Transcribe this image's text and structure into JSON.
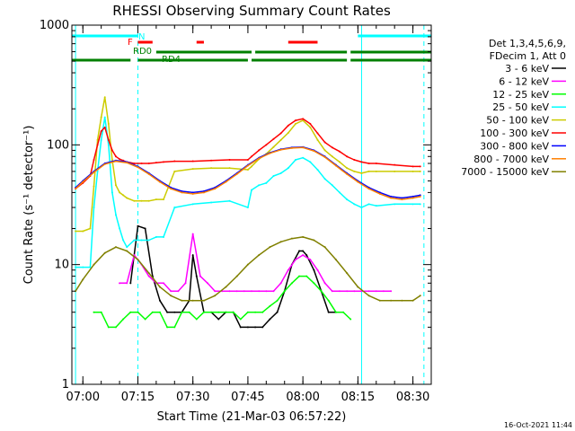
{
  "chart_data": {
    "type": "line",
    "title": "RHESSI Observing Summary Count Rates",
    "xlabel": "Start Time (21-Mar-03 06:57:22)",
    "ylabel": "Count Rate (s⁻¹ detector⁻¹)",
    "y_scale": "log",
    "ylim": [
      1,
      1000
    ],
    "xlim": [
      "06:57",
      "08:35"
    ],
    "x_ticks": [
      "07:00",
      "07:15",
      "07:30",
      "07:45",
      "08:00",
      "08:15",
      "08:30"
    ],
    "y_ticks": [
      "1",
      "10",
      "100",
      "1000"
    ],
    "legend_header": [
      "Det 1,3,4,5,6,9,",
      "FDecim 1, Att 0"
    ],
    "legend_position": "right",
    "series": [
      {
        "name": "3 - 6 keV",
        "color": "#000000",
        "x": [
          "07:13",
          "07:15",
          "07:17",
          "07:19",
          "07:21",
          "07:23",
          "07:25",
          "07:27",
          "07:29",
          "07:30",
          "07:31",
          "07:33",
          "07:35",
          "07:37",
          "07:39",
          "07:41",
          "07:43",
          "07:45",
          "07:47",
          "07:49",
          "07:51",
          "07:53",
          "07:55",
          "07:57",
          "07:59",
          "08:00",
          "08:01",
          "08:03",
          "08:05",
          "08:07",
          "08:09"
        ],
        "y": [
          7,
          21,
          20,
          8,
          5,
          4,
          4,
          4,
          5,
          12,
          8,
          4,
          4,
          3.5,
          4,
          4,
          3,
          3,
          3,
          3,
          3.5,
          4,
          6,
          10,
          13,
          13,
          12,
          9,
          6,
          4,
          4
        ]
      },
      {
        "name": "6 - 12 keV",
        "color": "#ff00ff",
        "x": [
          "07:10",
          "07:12",
          "07:14",
          "07:16",
          "07:18",
          "07:20",
          "07:22",
          "07:24",
          "07:26",
          "07:28",
          "07:30",
          "07:32",
          "07:34",
          "07:36",
          "07:38",
          "07:40",
          "07:42",
          "07:44",
          "07:46",
          "07:48",
          "07:50",
          "07:52",
          "07:54",
          "07:56",
          "07:58",
          "08:00",
          "08:02",
          "08:04",
          "08:06",
          "08:08",
          "08:10",
          "08:12",
          "08:14",
          "08:16",
          "08:18",
          "08:20",
          "08:22",
          "08:24"
        ],
        "y": [
          7,
          7,
          12,
          10,
          8,
          7,
          7,
          6,
          6,
          7,
          18,
          8,
          7,
          6,
          6,
          6,
          6,
          6,
          6,
          6,
          6,
          6,
          7,
          9,
          11,
          12,
          11,
          9,
          7,
          6,
          6,
          6,
          6,
          6,
          6,
          6,
          6,
          6
        ]
      },
      {
        "name": "12 - 25 keV",
        "color": "#00ff00",
        "x": [
          "07:03",
          "07:05",
          "07:07",
          "07:09",
          "07:11",
          "07:13",
          "07:15",
          "07:17",
          "07:19",
          "07:21",
          "07:23",
          "07:25",
          "07:27",
          "07:29",
          "07:31",
          "07:33",
          "07:35",
          "07:37",
          "07:39",
          "07:41",
          "07:43",
          "07:45",
          "07:47",
          "07:49",
          "07:51",
          "07:53",
          "07:55",
          "07:57",
          "07:59",
          "08:01",
          "08:03",
          "08:05",
          "08:07",
          "08:09",
          "08:11",
          "08:13"
        ],
        "y": [
          4,
          4,
          3,
          3,
          3.5,
          4,
          4,
          3.5,
          4,
          4,
          3,
          3,
          4,
          4,
          3.5,
          4,
          4,
          4,
          4,
          4,
          3.5,
          4,
          4,
          4,
          4.5,
          5,
          6,
          7,
          8,
          8,
          7,
          6,
          5,
          4,
          4,
          3.5
        ]
      },
      {
        "name": "25 - 50 keV",
        "color": "#00ffff",
        "x": [
          "06:58",
          "07:00",
          "07:02",
          "07:03",
          "07:04",
          "07:05",
          "07:06",
          "07:07",
          "07:08",
          "07:09",
          "07:10",
          "07:11",
          "07:12",
          "07:14",
          "07:16",
          "07:18",
          "07:20",
          "07:22",
          "07:25",
          "07:30",
          "07:35",
          "07:40",
          "07:45",
          "07:46",
          "07:48",
          "07:50",
          "07:52",
          "07:54",
          "07:56",
          "07:58",
          "08:00",
          "08:02",
          "08:04",
          "08:06",
          "08:08",
          "08:10",
          "08:12",
          "08:14",
          "08:16",
          "08:18",
          "08:20",
          "08:25",
          "08:30",
          "08:32"
        ],
        "y": [
          9.5,
          9.5,
          9.5,
          30,
          60,
          110,
          170,
          100,
          40,
          26,
          20,
          16,
          14,
          16,
          16,
          16,
          17,
          17,
          30,
          32,
          33,
          34,
          30,
          42,
          46,
          48,
          55,
          58,
          64,
          75,
          78,
          72,
          62,
          52,
          46,
          40,
          35,
          32,
          30,
          32,
          31,
          32,
          32,
          32
        ]
      },
      {
        "name": "50 - 100 keV",
        "color": "#cccc00",
        "x": [
          "06:58",
          "07:00",
          "07:02",
          "07:03",
          "07:04",
          "07:05",
          "07:06",
          "07:07",
          "07:08",
          "07:09",
          "07:10",
          "07:11",
          "07:12",
          "07:14",
          "07:16",
          "07:18",
          "07:20",
          "07:22",
          "07:25",
          "07:30",
          "07:35",
          "07:40",
          "07:45",
          "07:46",
          "07:48",
          "07:50",
          "07:52",
          "07:54",
          "07:56",
          "07:58",
          "08:00",
          "08:02",
          "08:04",
          "08:06",
          "08:08",
          "08:10",
          "08:12",
          "08:14",
          "08:16",
          "08:18",
          "08:20",
          "08:25",
          "08:30",
          "08:32"
        ],
        "y": [
          19,
          19,
          20,
          45,
          110,
          170,
          250,
          150,
          75,
          46,
          40,
          38,
          36,
          34,
          34,
          34,
          35,
          35,
          60,
          63,
          64,
          64,
          62,
          66,
          76,
          84,
          96,
          110,
          126,
          150,
          160,
          140,
          110,
          90,
          80,
          72,
          64,
          60,
          58,
          60,
          60,
          60,
          60,
          60
        ]
      },
      {
        "name": "100 - 300 keV",
        "color": "#ff0000",
        "x": [
          "06:58",
          "07:00",
          "07:02",
          "07:03",
          "07:04",
          "07:05",
          "07:06",
          "07:07",
          "07:08",
          "07:09",
          "07:10",
          "07:11",
          "07:12",
          "07:14",
          "07:16",
          "07:18",
          "07:20",
          "07:22",
          "07:25",
          "07:30",
          "07:35",
          "07:40",
          "07:45",
          "07:46",
          "07:48",
          "07:50",
          "07:52",
          "07:54",
          "07:56",
          "07:58",
          "08:00",
          "08:02",
          "08:04",
          "08:06",
          "08:08",
          "08:10",
          "08:12",
          "08:14",
          "08:16",
          "08:18",
          "08:20",
          "08:25",
          "08:30",
          "08:32"
        ],
        "y": [
          43,
          48,
          55,
          75,
          100,
          130,
          140,
          110,
          90,
          80,
          76,
          74,
          72,
          70,
          70,
          70,
          71,
          72,
          73,
          73,
          74,
          75,
          75,
          80,
          90,
          100,
          112,
          125,
          145,
          160,
          165,
          150,
          125,
          105,
          95,
          88,
          80,
          75,
          72,
          70,
          70,
          68,
          66,
          66
        ]
      },
      {
        "name": "300 - 800 keV",
        "color": "#0000ff",
        "x": [
          "06:58",
          "07:00",
          "07:03",
          "07:06",
          "07:09",
          "07:12",
          "07:15",
          "07:18",
          "07:21",
          "07:24",
          "07:27",
          "07:30",
          "07:33",
          "07:36",
          "07:39",
          "07:42",
          "07:45",
          "07:48",
          "07:51",
          "07:54",
          "07:57",
          "08:00",
          "08:03",
          "08:06",
          "08:09",
          "08:12",
          "08:15",
          "08:18",
          "08:21",
          "08:24",
          "08:27",
          "08:30",
          "08:32"
        ],
        "y": [
          44,
          50,
          60,
          70,
          74,
          72,
          66,
          58,
          50,
          44,
          41,
          40,
          41,
          44,
          50,
          58,
          68,
          78,
          86,
          92,
          95,
          96,
          90,
          80,
          68,
          58,
          50,
          44,
          40,
          37,
          36,
          37,
          38
        ]
      },
      {
        "name": "800 - 7000 keV",
        "color": "#ff8000",
        "x": [
          "06:58",
          "07:00",
          "07:03",
          "07:06",
          "07:09",
          "07:12",
          "07:15",
          "07:18",
          "07:21",
          "07:24",
          "07:27",
          "07:30",
          "07:33",
          "07:36",
          "07:39",
          "07:42",
          "07:45",
          "07:48",
          "07:51",
          "07:54",
          "07:57",
          "08:00",
          "08:03",
          "08:06",
          "08:09",
          "08:12",
          "08:15",
          "08:18",
          "08:21",
          "08:24",
          "08:27",
          "08:30",
          "08:32"
        ],
        "y": [
          43,
          49,
          59,
          69,
          73,
          71,
          65,
          57,
          49,
          43,
          40,
          39,
          40,
          43,
          49,
          57,
          67,
          77,
          85,
          91,
          94,
          95,
          89,
          79,
          67,
          57,
          49,
          43,
          39,
          36,
          35,
          36,
          37
        ]
      },
      {
        "name": "7000 - 15000 keV",
        "color": "#808000",
        "x": [
          "06:58",
          "07:00",
          "07:03",
          "07:06",
          "07:09",
          "07:12",
          "07:15",
          "07:18",
          "07:21",
          "07:24",
          "07:27",
          "07:30",
          "07:33",
          "07:36",
          "07:39",
          "07:42",
          "07:45",
          "07:48",
          "07:51",
          "07:54",
          "07:57",
          "08:00",
          "08:03",
          "08:06",
          "08:09",
          "08:12",
          "08:15",
          "08:18",
          "08:21",
          "08:24",
          "08:27",
          "08:30",
          "08:32"
        ],
        "y": [
          6,
          7.5,
          10,
          12.5,
          14,
          13,
          11,
          8.5,
          6.5,
          5.5,
          5,
          5,
          5,
          5.5,
          6.5,
          8,
          10,
          12,
          14,
          15.5,
          16.5,
          17,
          16,
          14,
          11,
          8.5,
          6.5,
          5.5,
          5,
          5,
          5,
          5,
          5.5
        ]
      }
    ],
    "flag_bars": [
      {
        "label": "N",
        "color": "#00ffff",
        "segments": [
          [
            "06:57",
            "07:15"
          ],
          [
            "08:15",
            "08:35"
          ]
        ]
      },
      {
        "label": "F",
        "color": "#ff0000",
        "segments": [
          [
            "07:15",
            "07:19"
          ],
          [
            "07:31",
            "07:33"
          ],
          [
            "07:56",
            "08:04"
          ]
        ]
      },
      {
        "label": "RD0",
        "color": "#008000",
        "segments": [
          [
            "07:20",
            "07:46"
          ],
          [
            "07:47",
            "08:12"
          ],
          [
            "08:13",
            "08:35"
          ]
        ]
      },
      {
        "label": "RD4",
        "color": "#008000",
        "segments": [
          [
            "06:57",
            "07:13"
          ],
          [
            "07:15",
            "07:45"
          ],
          [
            "07:46",
            "08:12"
          ],
          [
            "08:13",
            "08:35"
          ]
        ]
      }
    ],
    "vertical_markers": [
      {
        "x": "06:58",
        "color": "#00ffff",
        "style": "solid"
      },
      {
        "x": "07:15",
        "color": "#00ffff",
        "style": "dashed"
      },
      {
        "x": "08:16",
        "color": "#00ffff",
        "style": "solid"
      },
      {
        "x": "08:33",
        "color": "#00ffff",
        "style": "dashed"
      }
    ]
  },
  "footer": {
    "timestamp": "16-Oct-2021 11:44"
  }
}
